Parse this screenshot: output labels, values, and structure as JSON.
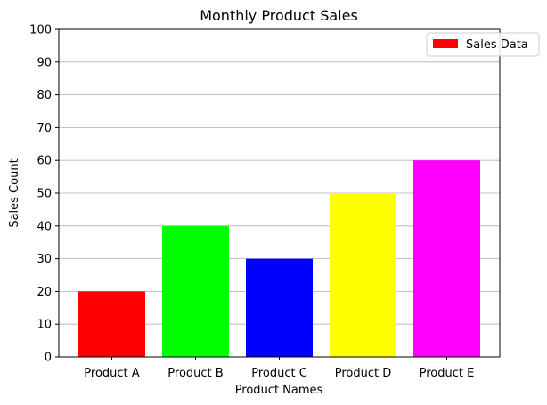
{
  "chart_data": {
    "type": "bar",
    "title": "Monthly Product Sales",
    "xlabel": "Product Names",
    "ylabel": "Sales Count",
    "categories": [
      "Product A",
      "Product B",
      "Product C",
      "Product D",
      "Product E"
    ],
    "values": [
      20,
      40,
      30,
      50,
      60
    ],
    "colors": [
      "#ff0000",
      "#00ff00",
      "#0000ff",
      "#ffff00",
      "#ff00ff"
    ],
    "ylim": [
      0,
      100
    ],
    "yticks": [
      0,
      10,
      20,
      30,
      40,
      50,
      60,
      70,
      80,
      90,
      100
    ],
    "grid": "y",
    "legend": {
      "label": "Sales Data",
      "color": "#ff0000",
      "placement": "top-right"
    }
  }
}
